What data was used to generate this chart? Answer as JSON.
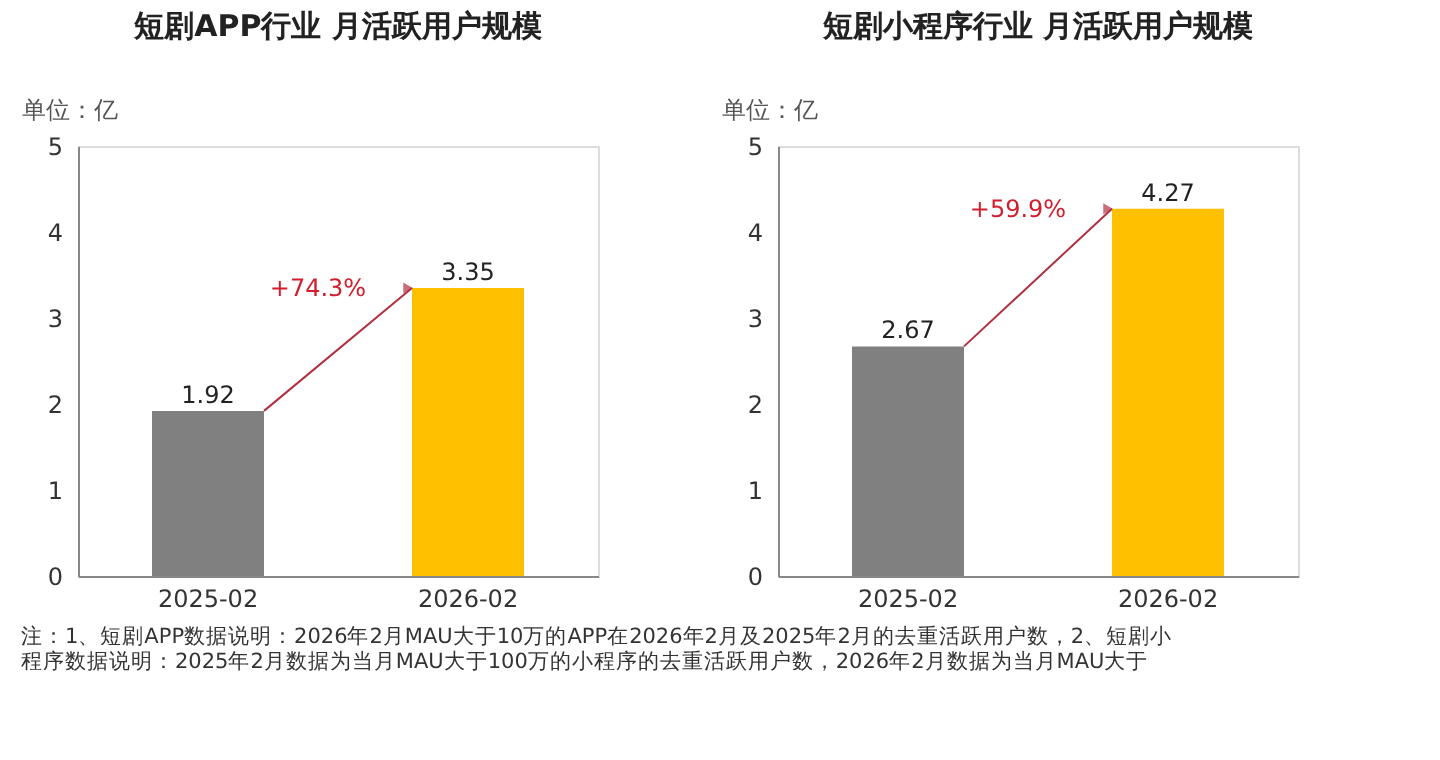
{
  "chart_data": [
    {
      "type": "bar",
      "title": "短剧APP行业 月活跃用户规模",
      "ylabel": "单位：亿",
      "categories": [
        "2025-02",
        "2026-02"
      ],
      "values": [
        1.92,
        3.35
      ],
      "colors": [
        "#808080",
        "#ffc000"
      ],
      "ylim": [
        0,
        5
      ],
      "yticks": [
        0,
        1,
        2,
        3,
        4,
        5
      ],
      "grid": false,
      "data_labels": true,
      "annotations": [
        "+74.3%",
        "注：1、短剧APP数据说明：2026年2月MAU大于10万的APP在2026年2月及2025年2月的去重活跃用户数，2、短剧小",
        "程序数据说明：2025年2月数据为当月MAU大于100万的小程序的去重活跃用户数，2026年2月数据为当月MAU大于"
      ]
    },
    {
      "type": "bar",
      "title": "短剧小程序行业 月活跃用户规模",
      "ylabel": "单位：亿",
      "categories": [
        "2025-02",
        "2026-02"
      ],
      "values": [
        2.67,
        4.27
      ],
      "colors": [
        "#808080",
        "#ffc000"
      ],
      "ylim": [
        0,
        5
      ],
      "yticks": [
        0,
        1,
        2,
        3,
        4,
        5
      ],
      "grid": false,
      "data_labels": true,
      "annotations": [
        "+59.9%"
      ]
    }
  ]
}
